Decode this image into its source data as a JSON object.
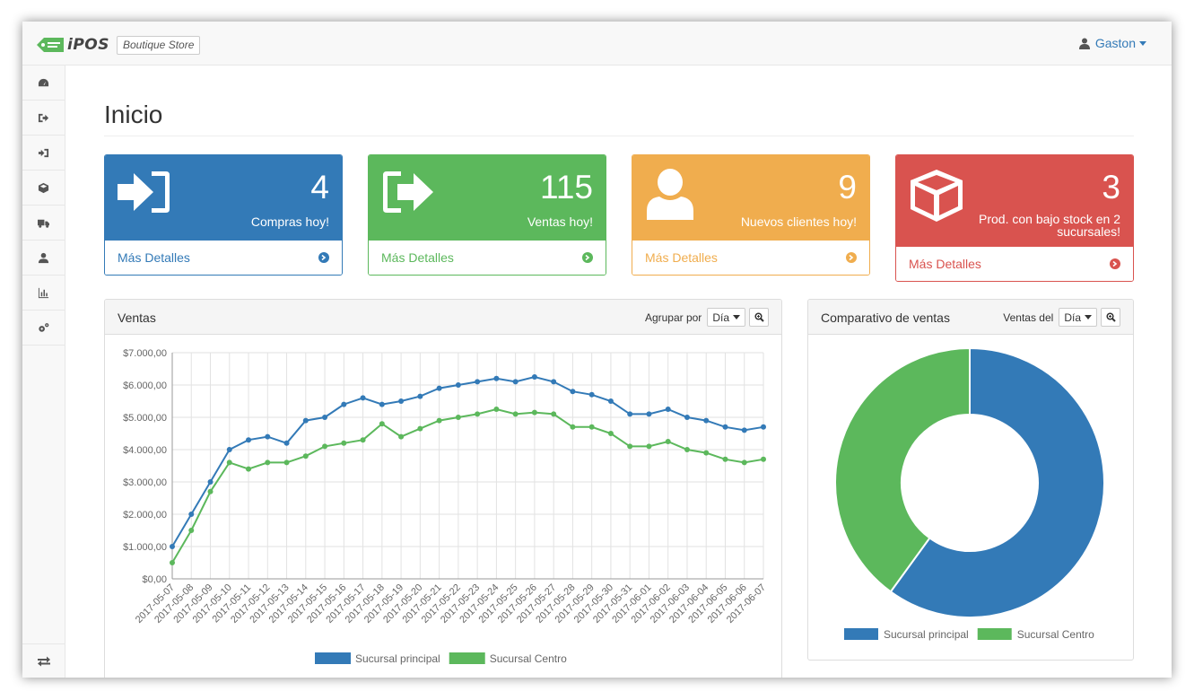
{
  "header": {
    "brand_name": "iPOS",
    "store_name": "Boutique Store",
    "user_name": "Gaston"
  },
  "sidebar": {
    "items": [
      {
        "icon": "dashboard-icon"
      },
      {
        "icon": "sign-out-icon"
      },
      {
        "icon": "sign-in-icon"
      },
      {
        "icon": "cube-icon"
      },
      {
        "icon": "truck-icon"
      },
      {
        "icon": "user-icon"
      },
      {
        "icon": "bar-chart-icon"
      },
      {
        "icon": "cogs-icon"
      }
    ],
    "bottom_icon": "exchange-icon"
  },
  "page": {
    "title": "Inicio"
  },
  "cards": [
    {
      "count": "4",
      "label": "Compras hoy!",
      "link": "Más Detalles",
      "color": "#337ab7",
      "icon": "sign-in-icon"
    },
    {
      "count": "115",
      "label": "Ventas hoy!",
      "link": "Más Detalles",
      "color": "#5cb85c",
      "icon": "sign-out-icon"
    },
    {
      "count": "9",
      "label": "Nuevos clientes hoy!",
      "link": "Más Detalles",
      "color": "#f0ad4e",
      "icon": "user-icon"
    },
    {
      "count": "3",
      "label_line1": "Prod. con bajo stock en 2",
      "label_line2": "sucursales!",
      "link": "Más Detalles",
      "color": "#d9534f",
      "icon": "cube-icon"
    }
  ],
  "ventas_panel": {
    "title": "Ventas",
    "group_label": "Agrupar por",
    "group_value": "Día"
  },
  "comparativo_panel": {
    "title": "Comparativo de ventas",
    "range_label": "Ventas del",
    "range_value": "Día"
  },
  "chart_data": [
    {
      "type": "line",
      "x": [
        "2017-05-07",
        "2017-05-08",
        "2017-05-09",
        "2017-05-10",
        "2017-05-11",
        "2017-05-12",
        "2017-05-13",
        "2017-05-14",
        "2017-05-15",
        "2017-05-16",
        "2017-05-17",
        "2017-05-18",
        "2017-05-19",
        "2017-05-20",
        "2017-05-21",
        "2017-05-22",
        "2017-05-23",
        "2017-05-24",
        "2017-05-25",
        "2017-05-26",
        "2017-05-27",
        "2017-05-28",
        "2017-05-29",
        "2017-05-30",
        "2017-05-31",
        "2017-06-01",
        "2017-06-02",
        "2017-06-03",
        "2017-06-04",
        "2017-06-05",
        "2017-06-06",
        "2017-06-07"
      ],
      "series": [
        {
          "name": "Sucursal principal",
          "color": "#337ab7",
          "values": [
            1000,
            2000,
            3000,
            4000,
            4300,
            4400,
            4200,
            4900,
            5000,
            5400,
            5600,
            5400,
            5500,
            5650,
            5900,
            6000,
            6100,
            6200,
            6100,
            6250,
            6100,
            5800,
            5700,
            5500,
            5100,
            5100,
            5250,
            5000,
            4900,
            4700,
            4600,
            4700
          ]
        },
        {
          "name": "Sucursal Centro",
          "color": "#5cb85c",
          "values": [
            500,
            1500,
            2700,
            3600,
            3400,
            3600,
            3600,
            3800,
            4100,
            4200,
            4300,
            4800,
            4400,
            4650,
            4900,
            5000,
            5100,
            5250,
            5100,
            5150,
            5100,
            4700,
            4700,
            4500,
            4100,
            4100,
            4250,
            4000,
            3900,
            3700,
            3600,
            3700
          ]
        }
      ],
      "y_ticks": [
        "$0,00",
        "$1.000,00",
        "$2.000,00",
        "$3.000,00",
        "$4.000,00",
        "$5.000,00",
        "$6.000,00",
        "$7.000,00"
      ],
      "ylim": [
        0,
        7000
      ],
      "grid": true,
      "legend_position": "bottom"
    },
    {
      "type": "pie",
      "donut": true,
      "labels": [
        "Sucursal principal",
        "Sucursal Centro"
      ],
      "values": [
        60,
        40
      ],
      "colors": [
        "#337ab7",
        "#5cb85c"
      ],
      "legend_position": "bottom"
    }
  ]
}
